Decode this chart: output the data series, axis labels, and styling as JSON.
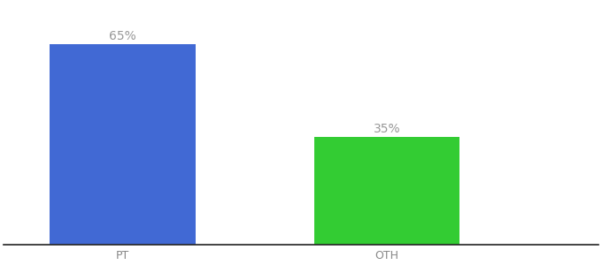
{
  "categories": [
    "PT",
    "OTH"
  ],
  "values": [
    65,
    35
  ],
  "bar_colors": [
    "#4169d4",
    "#33cc33"
  ],
  "value_labels": [
    "65%",
    "35%"
  ],
  "ylim": [
    0,
    78
  ],
  "bar_width": 0.55,
  "background_color": "#ffffff",
  "label_fontsize": 10,
  "tick_fontsize": 9,
  "label_color": "#999999",
  "tick_color": "#888888",
  "xlim": [
    -0.45,
    1.8
  ]
}
